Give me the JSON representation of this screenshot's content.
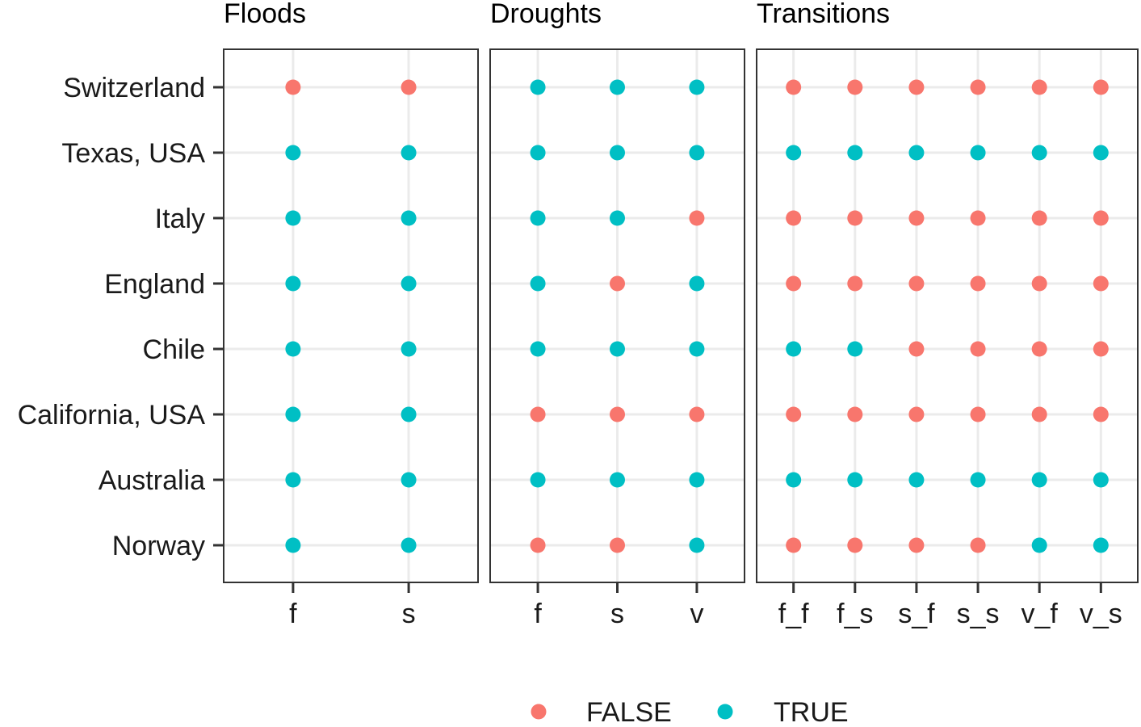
{
  "chart_data": {
    "type": "scatter",
    "rows": [
      "Switzerland",
      "Texas, USA",
      "Italy",
      "England",
      "Chile",
      "California, USA",
      "Australia",
      "Norway"
    ],
    "colors": {
      "FALSE": "#F8766D",
      "TRUE": "#00BFC4"
    },
    "panels": [
      {
        "title": "Floods",
        "columns": [
          "f",
          "s"
        ],
        "values": [
          [
            "FALSE",
            "FALSE"
          ],
          [
            "TRUE",
            "TRUE"
          ],
          [
            "TRUE",
            "TRUE"
          ],
          [
            "TRUE",
            "TRUE"
          ],
          [
            "TRUE",
            "TRUE"
          ],
          [
            "TRUE",
            "TRUE"
          ],
          [
            "TRUE",
            "TRUE"
          ],
          [
            "TRUE",
            "TRUE"
          ]
        ]
      },
      {
        "title": "Droughts",
        "columns": [
          "f",
          "s",
          "v"
        ],
        "values": [
          [
            "TRUE",
            "TRUE",
            "TRUE"
          ],
          [
            "TRUE",
            "TRUE",
            "TRUE"
          ],
          [
            "TRUE",
            "TRUE",
            "FALSE"
          ],
          [
            "TRUE",
            "FALSE",
            "TRUE"
          ],
          [
            "TRUE",
            "TRUE",
            "TRUE"
          ],
          [
            "FALSE",
            "FALSE",
            "FALSE"
          ],
          [
            "TRUE",
            "TRUE",
            "TRUE"
          ],
          [
            "FALSE",
            "FALSE",
            "TRUE"
          ]
        ]
      },
      {
        "title": "Transitions",
        "columns": [
          "f_f",
          "f_s",
          "s_f",
          "s_s",
          "v_f",
          "v_s"
        ],
        "values": [
          [
            "FALSE",
            "FALSE",
            "FALSE",
            "FALSE",
            "FALSE",
            "FALSE"
          ],
          [
            "TRUE",
            "TRUE",
            "TRUE",
            "TRUE",
            "TRUE",
            "TRUE"
          ],
          [
            "FALSE",
            "FALSE",
            "FALSE",
            "FALSE",
            "FALSE",
            "FALSE"
          ],
          [
            "FALSE",
            "FALSE",
            "FALSE",
            "FALSE",
            "FALSE",
            "FALSE"
          ],
          [
            "TRUE",
            "TRUE",
            "FALSE",
            "FALSE",
            "FALSE",
            "FALSE"
          ],
          [
            "FALSE",
            "FALSE",
            "FALSE",
            "FALSE",
            "FALSE",
            "FALSE"
          ],
          [
            "TRUE",
            "TRUE",
            "TRUE",
            "TRUE",
            "TRUE",
            "TRUE"
          ],
          [
            "FALSE",
            "FALSE",
            "FALSE",
            "FALSE",
            "TRUE",
            "TRUE"
          ]
        ]
      }
    ],
    "legend": {
      "position": "bottom",
      "entries": [
        "FALSE",
        "TRUE"
      ]
    },
    "grid": true
  }
}
